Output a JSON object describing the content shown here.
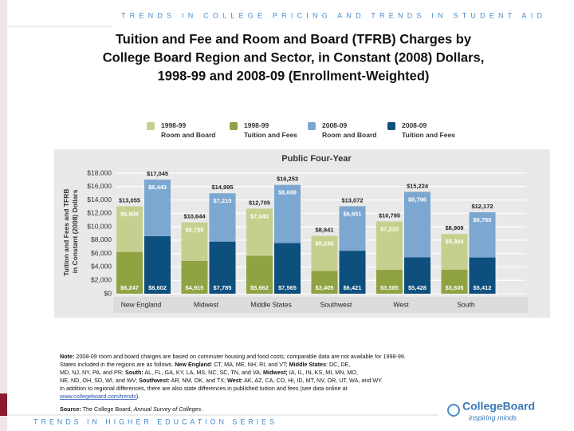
{
  "header": "TRENDS IN COLLEGE PRICING AND TRENDS IN STUDENT AID",
  "footer": "TRENDS IN HIGHER EDUCATION SERIES",
  "logo": {
    "name": "CollegeBoard",
    "tagline": "inspiring minds"
  },
  "chart_data": {
    "type": "stacked_grouped_bar",
    "title": [
      "Tuition and Fee and Room and Board (TFRB) Charges by",
      "College Board Region and Sector, in Constant (2008) Dollars,",
      "1998-99 and 2008-09 (Enrollment-Weighted)"
    ],
    "subtitle": "Public Four-Year",
    "ylabel": "Tuition and Fees and TFRB in Constant (2008) Dollars",
    "categories": [
      "New England",
      "Midwest",
      "Middle States",
      "Southwest",
      "West",
      "South"
    ],
    "ylim": [
      0,
      18000
    ],
    "yticks": [
      {
        "value": 0,
        "label": "$0"
      },
      {
        "value": 2000,
        "label": "$2,000"
      },
      {
        "value": 4000,
        "label": "$4,000"
      },
      {
        "value": 6000,
        "label": "$6,000"
      },
      {
        "value": 8000,
        "label": "$8,000"
      },
      {
        "value": 10000,
        "label": "$10,000"
      },
      {
        "value": 12000,
        "label": "$12,000"
      },
      {
        "value": 14000,
        "label": "$14,000"
      },
      {
        "value": 16000,
        "label": "$16,000"
      },
      {
        "value": 18000,
        "label": "$18,000"
      }
    ],
    "grid": true,
    "series": [
      {
        "name": "1998-99 Room and Board",
        "color": "#c6d08e",
        "stack": 0,
        "values": [
          6808,
          5729,
          7043,
          5236,
          7210,
          5304
        ],
        "value_labels": [
          "$6,808",
          "$5,729",
          "$7,043",
          "$5,236",
          "$7,210",
          "$5,304"
        ]
      },
      {
        "name": "1998-99 Tuition and Fees",
        "color": "#8fa342",
        "stack": 0,
        "values": [
          6247,
          4915,
          5662,
          3405,
          3585,
          3605
        ],
        "value_labels": [
          "$6,247",
          "$4,915",
          "$5,662",
          "$3,405",
          "$3,585",
          "$3,605"
        ]
      },
      {
        "name": "2008-09 Room and Board",
        "color": "#7ca7d0",
        "stack": 1,
        "values": [
          8443,
          7210,
          8688,
          6651,
          9796,
          6760
        ],
        "value_labels": [
          "$8,443",
          "$7,210",
          "$8,688",
          "$6,651",
          "$9,796",
          "$6,760"
        ]
      },
      {
        "name": "2008-09 Tuition and Fees",
        "color": "#0d4f7d",
        "stack": 1,
        "values": [
          8602,
          7785,
          7565,
          6421,
          5428,
          5412
        ],
        "value_labels": [
          "$8,602",
          "$7,785",
          "$7,565",
          "$6,421",
          "$5,428",
          "$5,412"
        ]
      }
    ],
    "totals": [
      {
        "stack": 0,
        "values": [
          13055,
          10644,
          12705,
          8641,
          10795,
          8909
        ],
        "value_labels": [
          "$13,055",
          "$10,644",
          "$12,705",
          "$8,641",
          "$10,795",
          "$8,909"
        ]
      },
      {
        "stack": 1,
        "values": [
          17045,
          14995,
          16253,
          13072,
          15224,
          12172
        ],
        "value_labels": [
          "$17,045",
          "$14,995",
          "$16,253",
          "$13,072",
          "$15,224",
          "$12,172"
        ]
      }
    ]
  },
  "note": [
    [
      {
        "text": "Note:",
        "bold": true
      },
      {
        "text": " 2008-09 room and board charges are based on commuter housing and food costs; comparable data are not available for 1998-99."
      }
    ],
    [
      {
        "text": "States included in the regions are as follows. "
      },
      {
        "text": "New England",
        "bold": true
      },
      {
        "text": ": CT, MA, ME, NH, RI, and VT; "
      },
      {
        "text": "Middle States",
        "bold": true
      },
      {
        "text": ": DC, DE,"
      }
    ],
    [
      {
        "text": "MD, NJ, NY, PA, and PR; "
      },
      {
        "text": "South:",
        "bold": true
      },
      {
        "text": " AL, FL, GA, KY, LA, MS, NC, SC, TN, and VA; "
      },
      {
        "text": "Midwest;",
        "bold": true
      },
      {
        "text": " IA, IL, IN, KS, MI, MN, MO,"
      }
    ],
    [
      {
        "text": "NE, ND, OH, SD, WI, and WV; "
      },
      {
        "text": "Southwest:",
        "bold": true
      },
      {
        "text": " AR, NM, OK, and TX; "
      },
      {
        "text": "West:",
        "bold": true
      },
      {
        "text": " AK, AZ, CA, CO, HI, ID, MT, NV, OR, UT, WA, and WY."
      }
    ],
    [
      {
        "text": "In addition to regional differences, there are also state differences in published tuition and fees (see data online at"
      }
    ],
    [
      {
        "text": "www.collegeboard.com/trends",
        "link": true
      },
      {
        "text": ")."
      }
    ]
  ],
  "source": [
    {
      "text": "Source:",
      "bold": true
    },
    {
      "text": " The College Board, "
    },
    {
      "text": "Annual  Survey of Colleges",
      "italic": true
    },
    {
      "text": "."
    }
  ]
}
